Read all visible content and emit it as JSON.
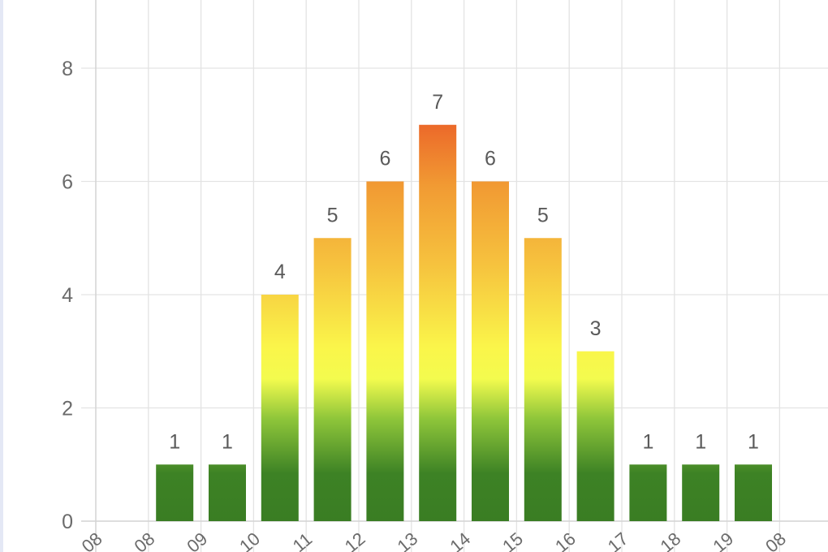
{
  "chart_data": {
    "type": "bar",
    "categories": [
      "08",
      "08",
      "09",
      "10",
      "11",
      "12",
      "13",
      "14",
      "15",
      "16",
      "17",
      "18",
      "19",
      "08"
    ],
    "values": [
      0,
      1,
      1,
      4,
      5,
      6,
      7,
      6,
      5,
      3,
      1,
      1,
      1,
      0
    ],
    "data_labels": [
      "",
      "1",
      "1",
      "4",
      "5",
      "6",
      "7",
      "6",
      "5",
      "3",
      "1",
      "1",
      "1",
      ""
    ],
    "yticks": [
      "0",
      "2",
      "4",
      "6",
      "8"
    ],
    "ylim": [
      0,
      8
    ],
    "grid": true,
    "colors": {
      "low": "#3a7d23",
      "mid_low": "#9ed23a",
      "mid": "#faff4a",
      "mid_high": "#f5b33c",
      "high": "#ec6a2a"
    }
  }
}
